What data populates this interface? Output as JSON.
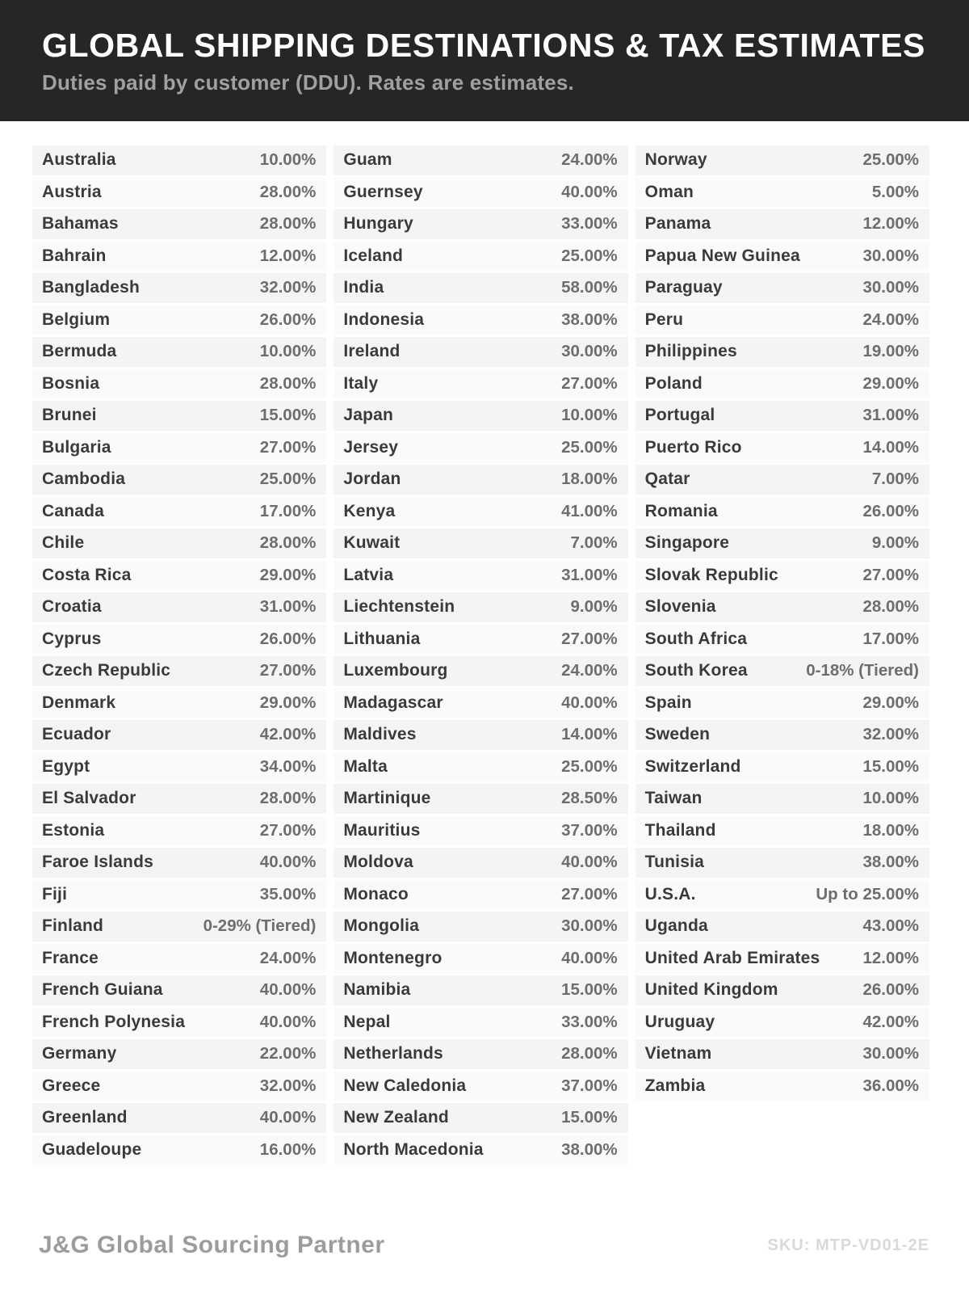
{
  "header": {
    "title": "GLOBAL SHIPPING DESTINATIONS & TAX ESTIMATES",
    "subtitle": "Duties paid by customer (DDU). Rates are estimates."
  },
  "colors": {
    "header_bg": "#262626",
    "row_bg_odd": "#f4f4f4",
    "row_bg_even": "#fafafa",
    "country_text": "#3a3a3a",
    "rate_text": "#6d6d6d",
    "brand_text": "#9c9c9c",
    "sku_text": "#d9d9d9"
  },
  "columns": [
    [
      {
        "country": "Australia",
        "rate": "10.00%"
      },
      {
        "country": "Austria",
        "rate": "28.00%"
      },
      {
        "country": "Bahamas",
        "rate": "28.00%"
      },
      {
        "country": "Bahrain",
        "rate": "12.00%"
      },
      {
        "country": "Bangladesh",
        "rate": "32.00%"
      },
      {
        "country": "Belgium",
        "rate": "26.00%"
      },
      {
        "country": "Bermuda",
        "rate": "10.00%"
      },
      {
        "country": "Bosnia",
        "rate": "28.00%"
      },
      {
        "country": "Brunei",
        "rate": "15.00%"
      },
      {
        "country": "Bulgaria",
        "rate": "27.00%"
      },
      {
        "country": "Cambodia",
        "rate": "25.00%"
      },
      {
        "country": "Canada",
        "rate": "17.00%"
      },
      {
        "country": "Chile",
        "rate": "28.00%"
      },
      {
        "country": "Costa Rica",
        "rate": "29.00%"
      },
      {
        "country": "Croatia",
        "rate": "31.00%"
      },
      {
        "country": "Cyprus",
        "rate": "26.00%"
      },
      {
        "country": "Czech Republic",
        "rate": "27.00%"
      },
      {
        "country": "Denmark",
        "rate": "29.00%"
      },
      {
        "country": "Ecuador",
        "rate": "42.00%"
      },
      {
        "country": "Egypt",
        "rate": "34.00%"
      },
      {
        "country": "El Salvador",
        "rate": "28.00%"
      },
      {
        "country": "Estonia",
        "rate": "27.00%"
      },
      {
        "country": "Faroe Islands",
        "rate": "40.00%"
      },
      {
        "country": "Fiji",
        "rate": "35.00%"
      },
      {
        "country": "Finland",
        "rate": "0-29% (Tiered)"
      },
      {
        "country": "France",
        "rate": "24.00%"
      },
      {
        "country": "French Guiana",
        "rate": "40.00%"
      },
      {
        "country": "French Polynesia",
        "rate": "40.00%"
      },
      {
        "country": "Germany",
        "rate": "22.00%"
      },
      {
        "country": "Greece",
        "rate": "32.00%"
      },
      {
        "country": "Greenland",
        "rate": "40.00%"
      },
      {
        "country": "Guadeloupe",
        "rate": "16.00%"
      }
    ],
    [
      {
        "country": "Guam",
        "rate": "24.00%"
      },
      {
        "country": "Guernsey",
        "rate": "40.00%"
      },
      {
        "country": "Hungary",
        "rate": "33.00%"
      },
      {
        "country": "Iceland",
        "rate": "25.00%"
      },
      {
        "country": "India",
        "rate": "58.00%"
      },
      {
        "country": "Indonesia",
        "rate": "38.00%"
      },
      {
        "country": "Ireland",
        "rate": "30.00%"
      },
      {
        "country": "Italy",
        "rate": "27.00%"
      },
      {
        "country": "Japan",
        "rate": "10.00%"
      },
      {
        "country": "Jersey",
        "rate": "25.00%"
      },
      {
        "country": "Jordan",
        "rate": "18.00%"
      },
      {
        "country": "Kenya",
        "rate": "41.00%"
      },
      {
        "country": "Kuwait",
        "rate": "7.00%"
      },
      {
        "country": "Latvia",
        "rate": "31.00%"
      },
      {
        "country": "Liechtenstein",
        "rate": "9.00%"
      },
      {
        "country": "Lithuania",
        "rate": "27.00%"
      },
      {
        "country": "Luxembourg",
        "rate": "24.00%"
      },
      {
        "country": "Madagascar",
        "rate": "40.00%"
      },
      {
        "country": "Maldives",
        "rate": "14.00%"
      },
      {
        "country": "Malta",
        "rate": "25.00%"
      },
      {
        "country": "Martinique",
        "rate": "28.50%"
      },
      {
        "country": "Mauritius",
        "rate": "37.00%"
      },
      {
        "country": "Moldova",
        "rate": "40.00%"
      },
      {
        "country": "Monaco",
        "rate": "27.00%"
      },
      {
        "country": "Mongolia",
        "rate": "30.00%"
      },
      {
        "country": "Montenegro",
        "rate": "40.00%"
      },
      {
        "country": "Namibia",
        "rate": "15.00%"
      },
      {
        "country": "Nepal",
        "rate": "33.00%"
      },
      {
        "country": "Netherlands",
        "rate": "28.00%"
      },
      {
        "country": "New Caledonia",
        "rate": "37.00%"
      },
      {
        "country": "New Zealand",
        "rate": "15.00%"
      },
      {
        "country": "North Macedonia",
        "rate": "38.00%"
      }
    ],
    [
      {
        "country": "Norway",
        "rate": "25.00%"
      },
      {
        "country": "Oman",
        "rate": "5.00%"
      },
      {
        "country": "Panama",
        "rate": "12.00%"
      },
      {
        "country": "Papua New Guinea",
        "rate": "30.00%"
      },
      {
        "country": "Paraguay",
        "rate": "30.00%"
      },
      {
        "country": "Peru",
        "rate": "24.00%"
      },
      {
        "country": "Philippines",
        "rate": "19.00%"
      },
      {
        "country": "Poland",
        "rate": "29.00%"
      },
      {
        "country": "Portugal",
        "rate": "31.00%"
      },
      {
        "country": "Puerto Rico",
        "rate": "14.00%"
      },
      {
        "country": "Qatar",
        "rate": "7.00%"
      },
      {
        "country": "Romania",
        "rate": "26.00%"
      },
      {
        "country": "Singapore",
        "rate": "9.00%"
      },
      {
        "country": "Slovak Republic",
        "rate": "27.00%"
      },
      {
        "country": "Slovenia",
        "rate": "28.00%"
      },
      {
        "country": "South Africa",
        "rate": "17.00%"
      },
      {
        "country": "South Korea",
        "rate": "0-18% (Tiered)"
      },
      {
        "country": "Spain",
        "rate": "29.00%"
      },
      {
        "country": "Sweden",
        "rate": "32.00%"
      },
      {
        "country": "Switzerland",
        "rate": "15.00%"
      },
      {
        "country": "Taiwan",
        "rate": "10.00%"
      },
      {
        "country": "Thailand",
        "rate": "18.00%"
      },
      {
        "country": "Tunisia",
        "rate": "38.00%"
      },
      {
        "country": "U.S.A.",
        "rate": "Up to 25.00%"
      },
      {
        "country": "Uganda",
        "rate": "43.00%"
      },
      {
        "country": "United Arab Emirates",
        "rate": "12.00%"
      },
      {
        "country": "United Kingdom",
        "rate": "26.00%"
      },
      {
        "country": "Uruguay",
        "rate": "42.00%"
      },
      {
        "country": "Vietnam",
        "rate": "30.00%"
      },
      {
        "country": "Zambia",
        "rate": "36.00%"
      }
    ]
  ],
  "footer": {
    "brand": "J&G Global Sourcing Partner",
    "sku": "SKU: MTP-VD01-2E"
  }
}
